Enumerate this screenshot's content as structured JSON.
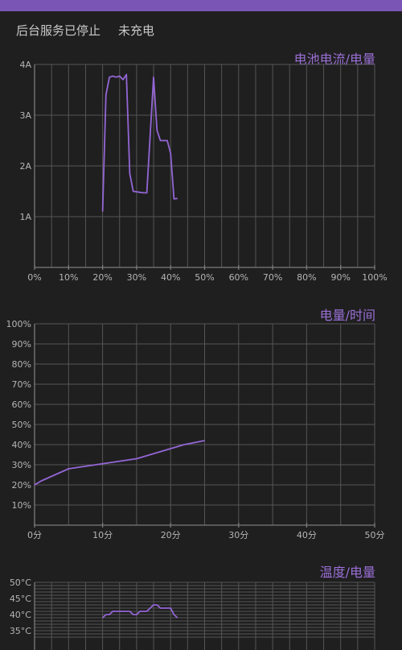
{
  "header": {
    "accent_color": "#7b55b5"
  },
  "status_bar": {
    "left_text": "后台服务已停止",
    "right_text": "未充电"
  },
  "colors": {
    "series": "#9466d6",
    "title": "#9a6fd6",
    "background": "#1f1f1f"
  },
  "chart_data": [
    {
      "type": "line",
      "title": "电池电流/电量",
      "xlim": [
        0,
        100
      ],
      "ylim": [
        0,
        4
      ],
      "x_ticks": [
        0,
        10,
        20,
        30,
        40,
        50,
        60,
        70,
        80,
        90,
        100
      ],
      "x_tick_labels": [
        "0%",
        "10%",
        "20%",
        "30%",
        "40%",
        "50%",
        "60%",
        "70%",
        "80%",
        "90%",
        "100%"
      ],
      "y_ticks": [
        1,
        2,
        3,
        4
      ],
      "y_tick_labels": [
        "1A",
        "2A",
        "3A",
        "4A"
      ],
      "x_grid": [
        0,
        5,
        10,
        15,
        20,
        25,
        30,
        35,
        40,
        45,
        50,
        55,
        60,
        65,
        70,
        75,
        80,
        85,
        90,
        95,
        100
      ],
      "y_grid": [
        1,
        2,
        3,
        4
      ],
      "grid": true,
      "series": [
        {
          "values": [
            [
              20,
              1.1
            ],
            [
              21,
              3.4
            ],
            [
              22,
              3.75
            ],
            [
              23,
              3.77
            ],
            [
              24,
              3.75
            ],
            [
              25,
              3.77
            ],
            [
              26,
              3.7
            ],
            [
              27,
              3.8
            ],
            [
              28,
              1.85
            ],
            [
              29,
              1.5
            ],
            [
              30,
              1.49
            ],
            [
              31,
              1.48
            ],
            [
              32,
              1.47
            ],
            [
              33,
              1.47
            ],
            [
              35,
              3.75
            ],
            [
              36,
              2.7
            ],
            [
              37,
              2.5
            ],
            [
              38,
              2.5
            ],
            [
              39,
              2.5
            ],
            [
              40,
              2.25
            ],
            [
              41,
              1.35
            ],
            [
              42,
              1.36
            ]
          ]
        }
      ]
    },
    {
      "type": "line",
      "title": "电量/时间",
      "xlim": [
        0,
        50
      ],
      "ylim": [
        0,
        100
      ],
      "x_ticks": [
        0,
        10,
        20,
        30,
        40,
        50
      ],
      "x_tick_labels": [
        "0分",
        "10分",
        "20分",
        "30分",
        "40分",
        "50分"
      ],
      "y_ticks": [
        10,
        20,
        30,
        40,
        50,
        60,
        70,
        80,
        90,
        100
      ],
      "y_tick_labels": [
        "10%",
        "20%",
        "30%",
        "40%",
        "50%",
        "60%",
        "70%",
        "80%",
        "90%",
        "100%"
      ],
      "x_grid": [
        0,
        5,
        10,
        15,
        20,
        25,
        30,
        35,
        40,
        45,
        50
      ],
      "y_grid": [
        10,
        20,
        30,
        40,
        50,
        60,
        70,
        80,
        90,
        100
      ],
      "grid": true,
      "series": [
        {
          "values": [
            [
              0,
              20
            ],
            [
              1,
              22
            ],
            [
              3,
              25
            ],
            [
              5,
              28
            ],
            [
              7,
              29
            ],
            [
              9,
              30
            ],
            [
              11,
              31
            ],
            [
              13,
              32
            ],
            [
              15,
              33
            ],
            [
              16,
              34
            ],
            [
              18,
              36
            ],
            [
              20,
              38
            ],
            [
              22,
              40
            ],
            [
              23.5,
              41
            ],
            [
              25,
              42
            ]
          ]
        }
      ]
    },
    {
      "type": "line",
      "title": "温度/电量",
      "xlim": [
        0,
        100
      ],
      "ylim": [
        0,
        50
      ],
      "x_ticks": [],
      "x_tick_labels": [],
      "y_ticks": [
        35,
        40,
        45,
        50
      ],
      "y_tick_labels": [
        "35°C",
        "40°C",
        "45°C",
        "50°C"
      ],
      "x_grid": [
        0,
        5,
        10,
        15,
        20,
        25,
        30,
        35,
        40,
        45,
        50,
        55,
        60,
        65,
        70,
        75,
        80,
        85,
        90,
        95,
        100
      ],
      "y_grid": [
        33,
        34,
        35,
        36,
        37,
        38,
        39,
        40,
        41,
        42,
        43,
        44,
        45,
        46,
        47,
        48,
        49,
        50
      ],
      "grid": true,
      "series": [
        {
          "values": [
            [
              20,
              39
            ],
            [
              21,
              40
            ],
            [
              22,
              40
            ],
            [
              23,
              41
            ],
            [
              24,
              41
            ],
            [
              25,
              41
            ],
            [
              26,
              41
            ],
            [
              27,
              41
            ],
            [
              28,
              41
            ],
            [
              29,
              40
            ],
            [
              30,
              40
            ],
            [
              31,
              41
            ],
            [
              32,
              41
            ],
            [
              33,
              41
            ],
            [
              34,
              42
            ],
            [
              35,
              43
            ],
            [
              36,
              43
            ],
            [
              37,
              42
            ],
            [
              38,
              42
            ],
            [
              39,
              42
            ],
            [
              40,
              42
            ],
            [
              41,
              40
            ],
            [
              42,
              39
            ]
          ]
        }
      ]
    }
  ]
}
